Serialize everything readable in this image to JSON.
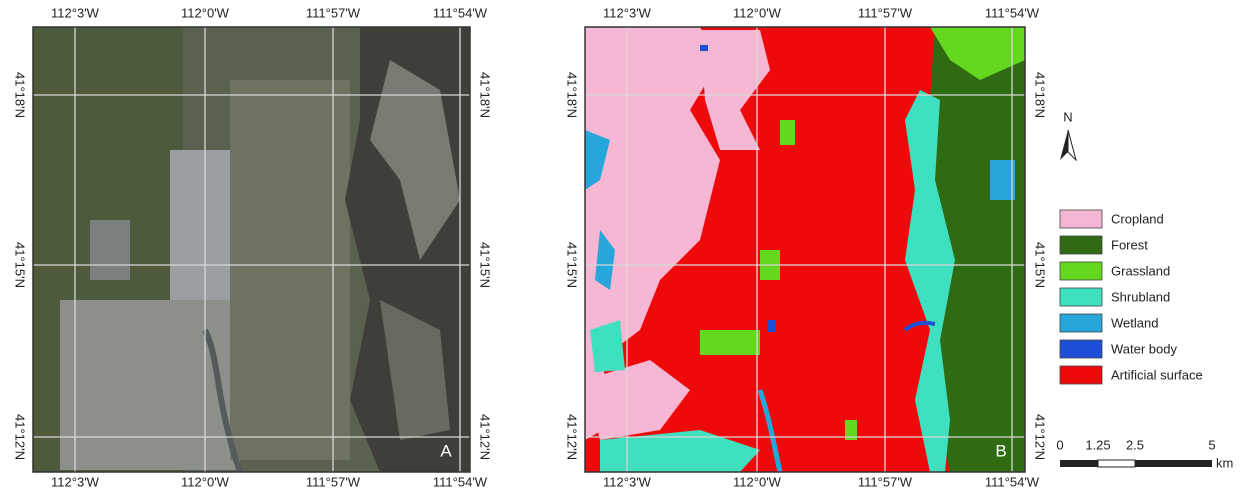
{
  "panels": [
    {
      "letter": "A",
      "top_labels": [
        "112°3'W",
        "112°0'W",
        "111°57'W",
        "111°54'W"
      ],
      "bottom_labels": [
        "112°3'W",
        "112°0'W",
        "111°57'W",
        "111°54'W"
      ],
      "left_labels": [
        "41°18'N",
        "41°15'N",
        "41°12'N"
      ],
      "right_labels": [
        "41°18'N",
        "41°15'N",
        "41°12'N"
      ]
    },
    {
      "letter": "B",
      "top_labels": [
        "112°3'W",
        "112°0'W",
        "111°57'W",
        "111°54'W"
      ],
      "bottom_labels": [
        "112°3'W",
        "112°0'W",
        "111°57'W",
        "111°54'W"
      ],
      "left_labels": [
        "41°18'N",
        "41°15'N",
        "41°12'N"
      ],
      "right_labels": [
        "41°18'N",
        "41°15'N",
        "41°12'N"
      ]
    }
  ],
  "north_label": "N",
  "legend": [
    {
      "label": "Cropland",
      "color": "#f5b7d3"
    },
    {
      "label": "Forest",
      "color": "#2f6b12"
    },
    {
      "label": "Grassland",
      "color": "#63d81e"
    },
    {
      "label": "Shrubland",
      "color": "#3ee0bf"
    },
    {
      "label": "Wetland",
      "color": "#26a6da"
    },
    {
      "label": "Water body",
      "color": "#1d4fd6"
    },
    {
      "label": "Artificial surface",
      "color": "#ee0a0a"
    }
  ],
  "scale_bar": {
    "labels": [
      0,
      1.25,
      2.5,
      5
    ],
    "unit": "km"
  }
}
